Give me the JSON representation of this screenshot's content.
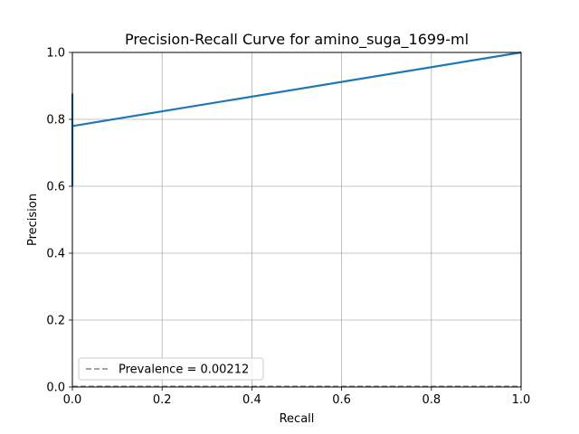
{
  "chart_data": {
    "type": "line",
    "title": "Precision-Recall Curve for amino_suga_1699-ml",
    "xlabel": "Recall",
    "ylabel": "Precision",
    "xlim": [
      0,
      1
    ],
    "ylim": [
      0,
      1
    ],
    "x_ticks": [
      "0.0",
      "0.2",
      "0.4",
      "0.6",
      "0.8",
      "1.0"
    ],
    "y_ticks": [
      "0.0",
      "0.2",
      "0.4",
      "0.6",
      "0.8",
      "1.0"
    ],
    "grid": true,
    "legend_position": "lower-left",
    "series": [
      {
        "color": "#1f77b4",
        "x": [
          0.0,
          0.0,
          0.0,
          1.0
        ],
        "y": [
          0.6,
          0.875,
          0.78,
          1.0
        ]
      },
      {
        "name": "Prevalence = 0.00212",
        "color": "#808080",
        "style": "dashed",
        "x": [
          0.0,
          1.0
        ],
        "y": [
          0.00212,
          0.00212
        ]
      }
    ]
  }
}
